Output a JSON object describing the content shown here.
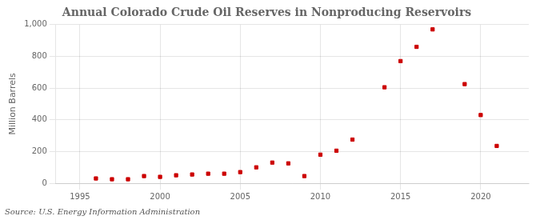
{
  "chart_data": {
    "type": "scatter",
    "title": "Annual Colorado Crude Oil Reserves in Nonproducing Reservoirs",
    "ylabel": "Million Barrels",
    "source": "Source: U.S. Energy Information Administration",
    "x": [
      1996,
      1997,
      1998,
      1999,
      2000,
      2001,
      2002,
      2003,
      2004,
      2005,
      2006,
      2007,
      2008,
      2009,
      2010,
      2011,
      2012,
      2014,
      2015,
      2016,
      2017,
      2019,
      2020,
      2021
    ],
    "values": [
      30,
      25,
      25,
      45,
      40,
      50,
      55,
      60,
      60,
      70,
      100,
      130,
      125,
      45,
      180,
      205,
      275,
      605,
      770,
      860,
      970,
      625,
      430,
      235
    ],
    "color": "#cc0000",
    "marker": "square",
    "grid": true,
    "xlim": [
      1993.5,
      2023
    ],
    "xticks": [
      1995,
      2000,
      2005,
      2010,
      2015,
      2020
    ],
    "ylim": [
      0,
      1000
    ],
    "yticks": [
      0,
      200,
      400,
      600,
      800,
      {
        "value": 1000,
        "label": "1,000"
      }
    ]
  }
}
